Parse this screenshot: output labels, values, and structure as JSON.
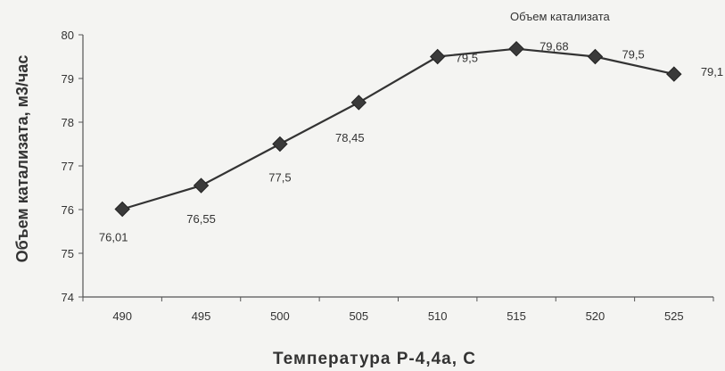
{
  "chart_data": {
    "type": "line",
    "title": "",
    "xlabel": "Температура Р-4,4а, С",
    "ylabel": "Объем катализата, м3/час",
    "x": [
      490,
      495,
      500,
      505,
      510,
      515,
      520,
      525
    ],
    "series": [
      {
        "name": "Объем катализата",
        "values": [
          76.01,
          76.55,
          77.5,
          78.45,
          79.5,
          79.68,
          79.5,
          79.1
        ],
        "labels": [
          "76,01",
          "76,55",
          "77,5",
          "78,45",
          "79,5",
          "79,68",
          "79,5",
          "79,1"
        ],
        "color": "#333333"
      }
    ],
    "x_tick_labels": [
      "490",
      "495",
      "500",
      "505",
      "510",
      "515",
      "520",
      "525"
    ],
    "y_tick_labels": [
      "74",
      "75",
      "76",
      "77",
      "78",
      "79",
      "80"
    ],
    "ylim": [
      74,
      80
    ],
    "grid": false,
    "legend": "top-right"
  }
}
